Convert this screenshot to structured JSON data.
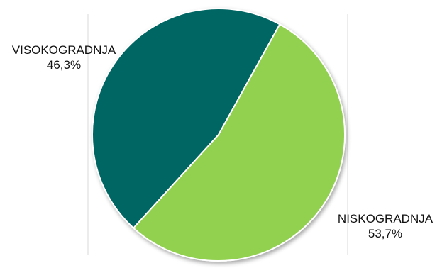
{
  "chart_data": {
    "type": "pie",
    "slices": [
      {
        "label": "VISOKOGRADNJA",
        "percent_label": "46,3%",
        "value": 46.3,
        "color": "#006663"
      },
      {
        "label": "NISKOGRADNJA",
        "percent_label": "53,7%",
        "value": 53.7,
        "color": "#92d050"
      }
    ]
  }
}
